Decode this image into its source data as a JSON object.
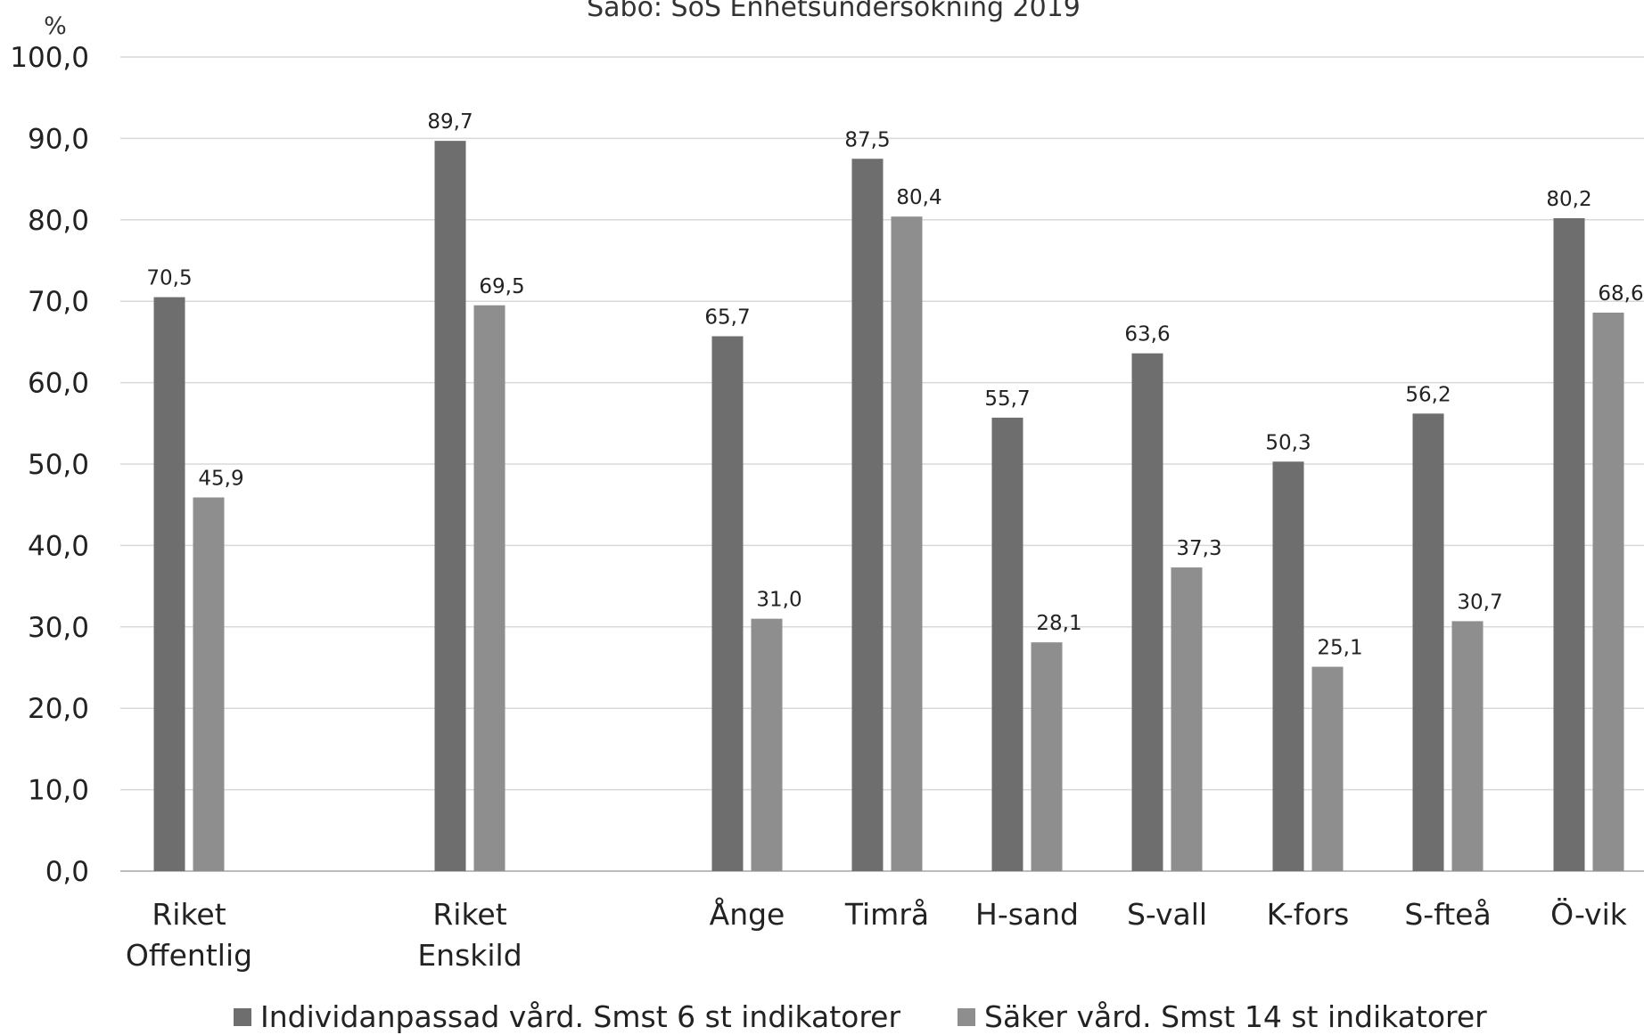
{
  "chart_data": {
    "type": "bar",
    "title": "Säbo: SoS Enhetsundersökning 2019",
    "ylabel": "%",
    "ylim": [
      0,
      100
    ],
    "yticks": [
      "0,0",
      "10,0",
      "20,0",
      "30,0",
      "40,0",
      "50,0",
      "60,0",
      "70,0",
      "80,0",
      "90,0",
      "100,0"
    ],
    "grid": true,
    "legend_position": "bottom",
    "categories": [
      [
        "Riket",
        "Offentlig"
      ],
      [
        "Riket",
        "Enskild"
      ],
      [
        "Ånge"
      ],
      [
        "Timrå"
      ],
      [
        "H-sand"
      ],
      [
        "S-vall"
      ],
      [
        "K-fors"
      ],
      [
        "S-fteå"
      ],
      [
        "Ö-vik"
      ]
    ],
    "series": [
      {
        "name": "Individanpassad vård. Smst 6 st indikatorer",
        "color": "#6e6e6e",
        "values": [
          70.5,
          89.7,
          65.7,
          87.5,
          55.7,
          63.6,
          50.3,
          56.2,
          80.2
        ],
        "labels": [
          "70,5",
          "89,7",
          "65,7",
          "87,5",
          "55,7",
          "63,6",
          "50,3",
          "56,2",
          "80,2"
        ]
      },
      {
        "name": "Säker vård. Smst 14 st indikatorer",
        "color": "#8e8e8e",
        "values": [
          45.9,
          69.5,
          31.0,
          80.4,
          28.1,
          37.3,
          25.1,
          30.7,
          68.6
        ],
        "labels": [
          "45,9",
          "69,5",
          "31,0",
          "80,4",
          "28,1",
          "37,3",
          "25,1",
          "30,7",
          "68,6"
        ]
      }
    ]
  }
}
